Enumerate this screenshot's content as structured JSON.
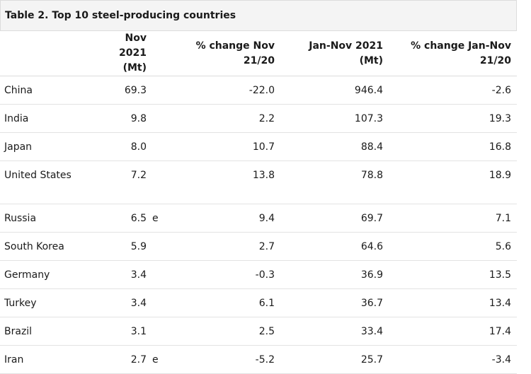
{
  "caption": "Table 2. Top 10 steel-producing countries",
  "headers": {
    "country": "",
    "nov2021": "Nov 2021 (Mt)",
    "flag": "",
    "pct_nov": "% change Nov 21/20",
    "jan_nov": "Jan-Nov 2021 (Mt)",
    "pct_jan_nov": "% change Jan-Nov 21/20"
  },
  "rows": [
    {
      "country": "China",
      "nov2021": "69.3",
      "flag": "",
      "pct_nov": "-22.0",
      "jan_nov": "946.4",
      "pct_jan_nov": "-2.6"
    },
    {
      "country": "India",
      "nov2021": "9.8",
      "flag": "",
      "pct_nov": "2.2",
      "jan_nov": "107.3",
      "pct_jan_nov": "19.3"
    },
    {
      "country": "Japan",
      "nov2021": "8.0",
      "flag": "",
      "pct_nov": "10.7",
      "jan_nov": "88.4",
      "pct_jan_nov": "16.8"
    },
    {
      "country": "United States",
      "nov2021": "7.2",
      "flag": "",
      "pct_nov": "13.8",
      "jan_nov": "78.8",
      "pct_jan_nov": "18.9"
    },
    {
      "country": "Russia",
      "nov2021": "6.5",
      "flag": "e",
      "pct_nov": "9.4",
      "jan_nov": "69.7",
      "pct_jan_nov": "7.1"
    },
    {
      "country": "South Korea",
      "nov2021": "5.9",
      "flag": "",
      "pct_nov": "2.7",
      "jan_nov": "64.6",
      "pct_jan_nov": "5.6"
    },
    {
      "country": "Germany",
      "nov2021": "3.4",
      "flag": "",
      "pct_nov": "-0.3",
      "jan_nov": "36.9",
      "pct_jan_nov": "13.5"
    },
    {
      "country": "Turkey",
      "nov2021": "3.4",
      "flag": "",
      "pct_nov": "6.1",
      "jan_nov": "36.7",
      "pct_jan_nov": "13.4"
    },
    {
      "country": "Brazil",
      "nov2021": "3.1",
      "flag": "",
      "pct_nov": "2.5",
      "jan_nov": "33.4",
      "pct_jan_nov": "17.4"
    },
    {
      "country": "Iran",
      "nov2021": "2.7",
      "flag": "e",
      "pct_nov": "-5.2",
      "jan_nov": "25.7",
      "pct_jan_nov": "-3.4"
    }
  ]
}
